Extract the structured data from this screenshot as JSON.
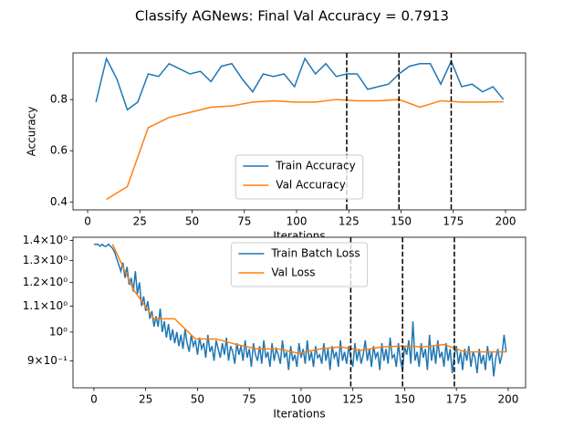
{
  "title": "Classify AGNews: Final Val Accuracy = 0.7913",
  "chart_data": [
    {
      "type": "line",
      "xlabel": "Iterations",
      "ylabel": "Accuracy",
      "xlim": [
        -7,
        209.6
      ],
      "ylim": [
        0.369,
        0.982
      ],
      "xticks": [
        0,
        25,
        50,
        75,
        100,
        125,
        150,
        175,
        200
      ],
      "yticks": [
        0.4,
        0.6,
        0.8
      ],
      "log_y": false,
      "legend": "lower center",
      "vlines": [
        124,
        149,
        174
      ],
      "vline_color": "#000000",
      "series": [
        {
          "name": "Train Accuracy",
          "color": "#1f77b4",
          "x": [
            4,
            9,
            14,
            19,
            24,
            29,
            34,
            39,
            44,
            49,
            54,
            59,
            64,
            69,
            74,
            79,
            84,
            89,
            94,
            99,
            104,
            109,
            114,
            119,
            124,
            129,
            134,
            139,
            144,
            149,
            154,
            159,
            164,
            169,
            174,
            179,
            184,
            189,
            194,
            199
          ],
          "values": [
            0.79,
            0.96,
            0.88,
            0.76,
            0.79,
            0.9,
            0.89,
            0.94,
            0.92,
            0.9,
            0.91,
            0.87,
            0.93,
            0.94,
            0.88,
            0.83,
            0.9,
            0.89,
            0.9,
            0.85,
            0.96,
            0.9,
            0.94,
            0.89,
            0.9,
            0.9,
            0.84,
            0.85,
            0.86,
            0.9,
            0.93,
            0.94,
            0.94,
            0.86,
            0.95,
            0.85,
            0.86,
            0.83,
            0.85,
            0.8
          ]
        },
        {
          "name": "Val Accuracy",
          "color": "#ff7f0e",
          "x": [
            9,
            19,
            29,
            39,
            49,
            59,
            69,
            79,
            89,
            99,
            109,
            119,
            129,
            139,
            149,
            159,
            169,
            179,
            189,
            199
          ],
          "values": [
            0.41,
            0.46,
            0.69,
            0.73,
            0.75,
            0.77,
            0.775,
            0.79,
            0.795,
            0.79,
            0.79,
            0.8,
            0.795,
            0.795,
            0.8,
            0.77,
            0.795,
            0.79,
            0.79,
            0.7913
          ]
        }
      ]
    },
    {
      "type": "line",
      "xlabel": "Iterations",
      "xlim": [
        -10.1,
        208.4
      ],
      "ylim": [
        0.815,
        1.416
      ],
      "xticks": [
        0,
        25,
        50,
        75,
        100,
        125,
        150,
        175,
        200
      ],
      "yticks": [
        {
          "value": 0.9,
          "label": "9×10⁻¹"
        },
        {
          "value": 1,
          "label": "10⁰"
        },
        {
          "value": 1.1,
          "label": "1.1×10⁰"
        },
        {
          "value": 1.2,
          "label": "1.2×10⁰"
        },
        {
          "value": 1.3,
          "label": "1.3×10⁰"
        },
        {
          "value": 1.4,
          "label": "1.4×10⁰"
        }
      ],
      "log_y": true,
      "legend": "upper center",
      "vlines": [
        124,
        149,
        174
      ],
      "vline_color": "#000000",
      "series": [
        {
          "name": "Train Batch Loss",
          "color": "#1f77b4",
          "x": [
            0,
            1,
            2,
            3,
            4,
            5,
            6,
            7,
            8,
            9,
            10,
            11,
            12,
            13,
            14,
            15,
            16,
            17,
            18,
            19,
            20,
            21,
            22,
            23,
            24,
            25,
            26,
            27,
            28,
            29,
            30,
            31,
            32,
            33,
            34,
            35,
            36,
            37,
            38,
            39,
            40,
            41,
            42,
            43,
            44,
            45,
            46,
            47,
            48,
            49,
            50,
            51,
            52,
            53,
            54,
            55,
            56,
            57,
            58,
            59,
            60,
            61,
            62,
            63,
            64,
            65,
            66,
            67,
            68,
            69,
            70,
            71,
            72,
            73,
            74,
            75,
            76,
            77,
            78,
            79,
            80,
            81,
            82,
            83,
            84,
            85,
            86,
            87,
            88,
            89,
            90,
            91,
            92,
            93,
            94,
            95,
            96,
            97,
            98,
            99,
            100,
            101,
            102,
            103,
            104,
            105,
            106,
            107,
            108,
            109,
            110,
            111,
            112,
            113,
            114,
            115,
            116,
            117,
            118,
            119,
            120,
            121,
            122,
            123,
            124,
            125,
            126,
            127,
            128,
            129,
            130,
            131,
            132,
            133,
            134,
            135,
            136,
            137,
            138,
            139,
            140,
            141,
            142,
            143,
            144,
            145,
            146,
            147,
            148,
            149,
            150,
            151,
            152,
            153,
            154,
            155,
            156,
            157,
            158,
            159,
            160,
            161,
            162,
            163,
            164,
            165,
            166,
            167,
            168,
            169,
            170,
            171,
            172,
            173,
            174,
            175,
            176,
            177,
            178,
            179,
            180,
            181,
            182,
            183,
            184,
            185,
            186,
            187,
            188,
            189,
            190,
            191,
            192,
            193,
            194,
            195,
            196,
            197,
            198,
            199
          ],
          "values": [
            1.38,
            1.38,
            1.38,
            1.37,
            1.38,
            1.37,
            1.37,
            1.38,
            1.37,
            1.36,
            1.34,
            1.31,
            1.28,
            1.25,
            1.29,
            1.22,
            1.27,
            1.19,
            1.22,
            1.16,
            1.25,
            1.15,
            1.2,
            1.1,
            1.14,
            1.08,
            1.12,
            1.05,
            1.08,
            1.02,
            1.06,
            1.02,
            1.09,
            1.0,
            1.04,
            0.98,
            1.03,
            0.97,
            1.01,
            0.96,
            1.0,
            0.95,
            0.99,
            0.94,
            1.01,
            0.96,
            0.93,
            0.99,
            0.95,
            0.97,
            0.92,
            0.98,
            0.94,
            0.96,
            0.91,
            0.99,
            0.93,
            0.95,
            0.9,
            0.97,
            0.94,
            0.91,
            0.96,
            0.92,
            0.98,
            0.9,
            0.95,
            0.93,
            0.89,
            0.96,
            0.92,
            0.95,
            0.9,
            0.97,
            0.91,
            0.94,
            0.88,
            0.96,
            0.92,
            0.9,
            0.95,
            0.89,
            0.97,
            0.91,
            0.93,
            0.88,
            0.96,
            0.9,
            0.94,
            0.92,
            0.89,
            0.97,
            0.91,
            0.93,
            0.87,
            0.95,
            0.9,
            0.92,
            0.88,
            0.96,
            0.91,
            0.94,
            0.89,
            0.97,
            0.9,
            0.93,
            0.88,
            0.95,
            0.91,
            0.92,
            0.89,
            0.96,
            0.9,
            0.94,
            0.87,
            0.95,
            0.91,
            0.93,
            0.88,
            0.97,
            0.9,
            0.93,
            0.89,
            0.95,
            0.91,
            0.88,
            0.96,
            0.9,
            0.94,
            0.89,
            0.92,
            0.97,
            0.9,
            0.94,
            0.88,
            0.95,
            0.91,
            0.93,
            0.87,
            0.96,
            0.9,
            0.94,
            0.89,
            0.98,
            0.91,
            0.92,
            0.88,
            0.96,
            0.9,
            0.87,
            0.95,
            0.92,
            0.97,
            0.89,
            1.04,
            0.9,
            0.93,
            0.88,
            0.96,
            0.91,
            0.94,
            0.87,
            0.99,
            0.9,
            0.95,
            0.89,
            0.97,
            0.91,
            0.93,
            0.88,
            0.96,
            0.9,
            0.94,
            0.86,
            0.92,
            0.95,
            0.89,
            0.93,
            0.87,
            0.94,
            0.9,
            0.95,
            0.88,
            0.93,
            0.91,
            0.86,
            0.94,
            0.89,
            0.92,
            0.87,
            0.95,
            0.9,
            0.93,
            0.85,
            0.91,
            0.94,
            0.89,
            0.92,
            0.99,
            0.93
          ]
        },
        {
          "name": "Val Loss",
          "color": "#ff7f0e",
          "x": [
            9,
            19,
            29,
            39,
            49,
            59,
            69,
            79,
            89,
            99,
            109,
            119,
            129,
            139,
            149,
            159,
            169,
            179,
            189,
            199
          ],
          "values": [
            1.38,
            1.17,
            1.05,
            1.05,
            0.975,
            0.975,
            0.955,
            0.94,
            0.94,
            0.925,
            0.94,
            0.947,
            0.935,
            0.947,
            0.95,
            0.947,
            0.955,
            0.93,
            0.93,
            0.93
          ]
        }
      ]
    }
  ]
}
